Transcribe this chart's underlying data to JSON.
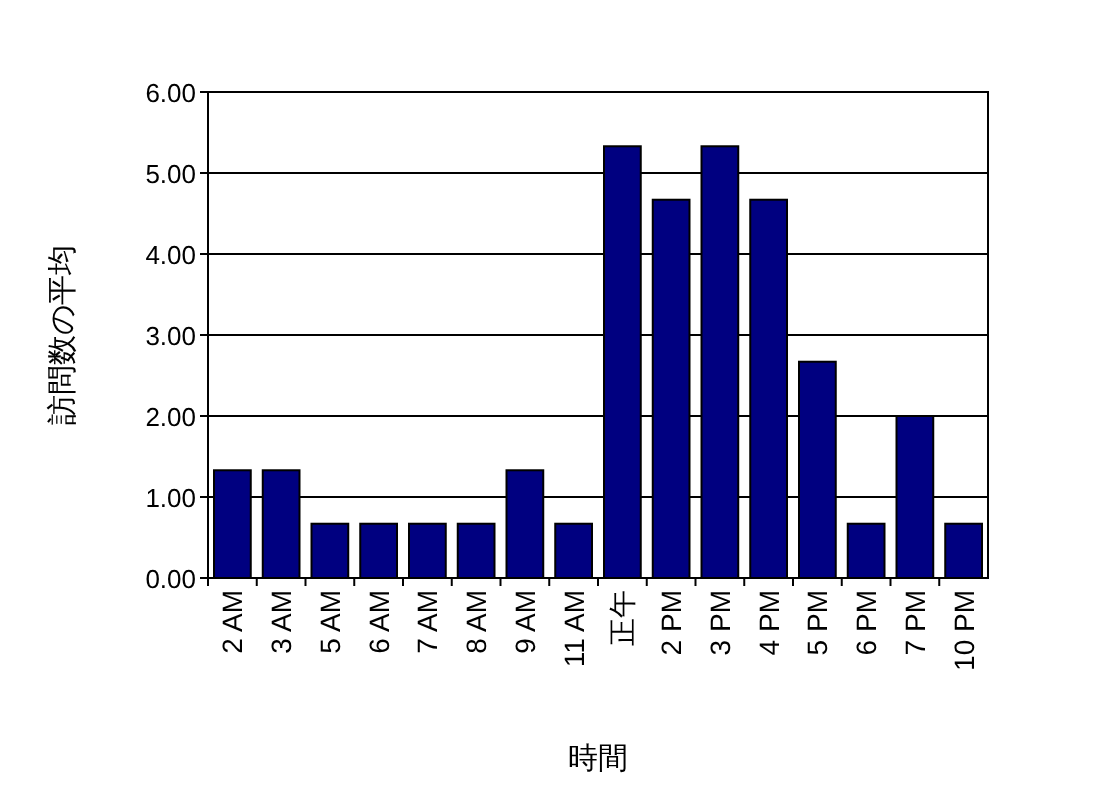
{
  "chart_data": {
    "type": "bar",
    "xlabel": "時間",
    "ylabel": "訪問数の平均",
    "categories": [
      "2 AM",
      "3 AM",
      "5 AM",
      "6 AM",
      "7 AM",
      "8 AM",
      "9 AM",
      "11 AM",
      "正午",
      "2 PM",
      "3 PM",
      "4 PM",
      "5 PM",
      "6 PM",
      "7 PM",
      "10 PM"
    ],
    "values": [
      1.33,
      1.33,
      0.67,
      0.67,
      0.67,
      0.67,
      1.33,
      0.67,
      5.33,
      4.67,
      5.33,
      4.67,
      2.67,
      0.67,
      2.0,
      0.67
    ],
    "color": "#000080",
    "ylim": [
      0,
      6
    ],
    "yticks": [
      {
        "value": 0,
        "label": "0.00"
      },
      {
        "value": 1,
        "label": "1.00"
      },
      {
        "value": 2,
        "label": "2.00"
      },
      {
        "value": 3,
        "label": "3.00"
      },
      {
        "value": 4,
        "label": "4.00"
      },
      {
        "value": 5,
        "label": "5.00"
      },
      {
        "value": 6,
        "label": "6.00"
      }
    ],
    "grid": "y"
  }
}
